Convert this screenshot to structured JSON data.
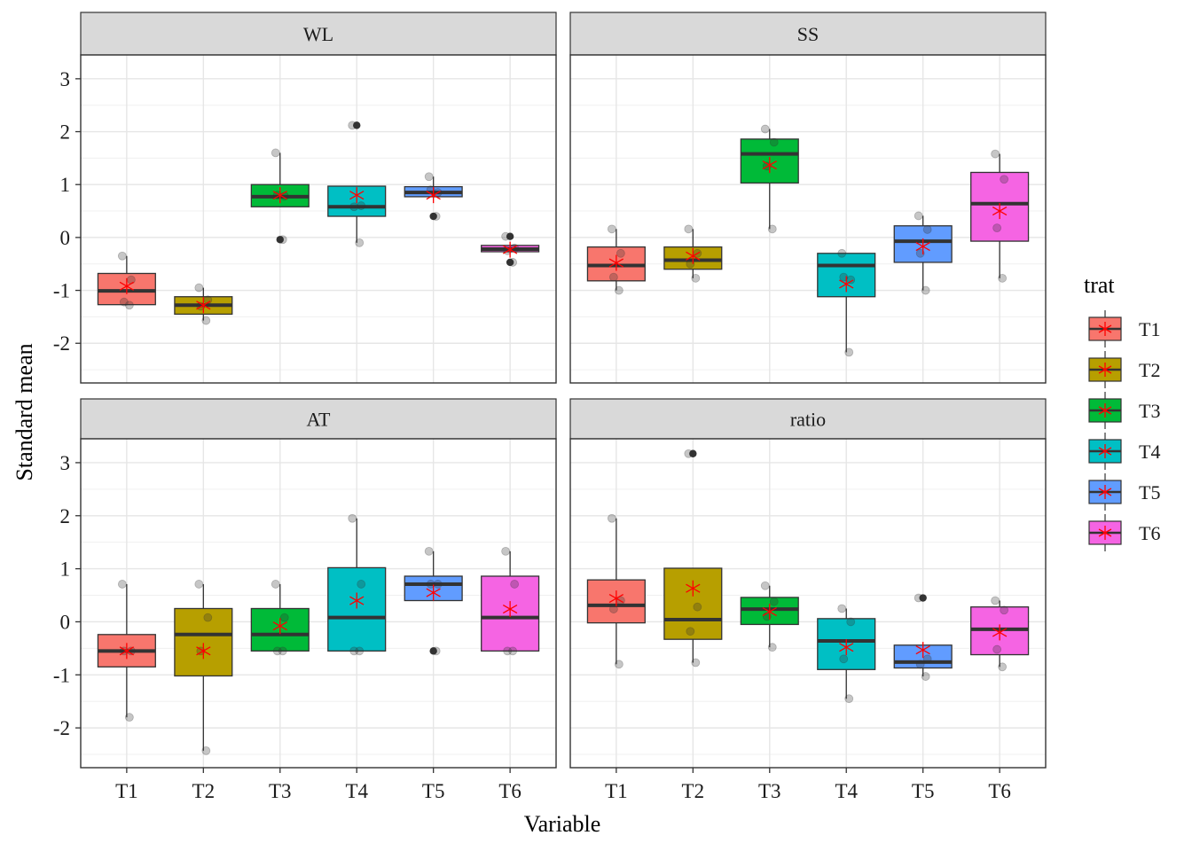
{
  "chart_data": {
    "type": "box",
    "xlabel": "Variable",
    "ylabel": "Standard mean",
    "categories": [
      "T1",
      "T2",
      "T3",
      "T4",
      "T5",
      "T6"
    ],
    "yticks": [
      -2,
      -1,
      0,
      1,
      2,
      3
    ],
    "ylim": [
      -2.75,
      3.45
    ],
    "legend": {
      "title": "trat",
      "position": "right",
      "entries": [
        "T1",
        "T2",
        "T3",
        "T4",
        "T5",
        "T6"
      ]
    },
    "colors": {
      "T1": "#F8766D",
      "T2": "#B79F00",
      "T3": "#00BA38",
      "T4": "#00BFC4",
      "T5": "#619CFF",
      "T6": "#F564E3"
    },
    "mean_marker_color": "#FF0000",
    "grid": true,
    "panels": [
      {
        "title": "WL",
        "boxes": [
          {
            "cat": "T1",
            "q1": -1.27,
            "median": -1.01,
            "q3": -0.68,
            "lo": -1.27,
            "hi": -0.35,
            "mean": -0.92,
            "outliers": [],
            "points": [
              -0.35,
              -0.8,
              -1.22,
              -1.28
            ]
          },
          {
            "cat": "T2",
            "q1": -1.45,
            "median": -1.28,
            "q3": -1.12,
            "lo": -1.57,
            "hi": -0.95,
            "mean": -1.28,
            "outliers": [],
            "points": [
              -0.95,
              -1.18,
              -1.3,
              -1.57
            ]
          },
          {
            "cat": "T3",
            "q1": 0.58,
            "median": 0.77,
            "q3": 1.0,
            "lo": 0.58,
            "hi": 1.6,
            "mean": 0.8,
            "outliers": [
              -0.04
            ],
            "points": [
              1.6,
              0.78,
              0.8,
              -0.04
            ]
          },
          {
            "cat": "T4",
            "q1": 0.4,
            "median": 0.58,
            "q3": 0.97,
            "lo": -0.1,
            "hi": 0.97,
            "mean": 0.8,
            "outliers": [
              2.12
            ],
            "points": [
              2.12,
              0.6,
              0.58,
              -0.1
            ]
          },
          {
            "cat": "T5",
            "q1": 0.77,
            "median": 0.85,
            "q3": 0.96,
            "lo": 0.77,
            "hi": 1.15,
            "mean": 0.8,
            "outliers": [
              0.4
            ],
            "points": [
              1.15,
              0.85,
              0.9,
              0.4
            ]
          },
          {
            "cat": "T6",
            "q1": -0.27,
            "median": -0.22,
            "q3": -0.15,
            "lo": -0.27,
            "hi": -0.15,
            "mean": -0.23,
            "outliers": [
              0.02,
              -0.47
            ],
            "points": [
              0.02,
              -0.2,
              -0.25,
              -0.47
            ]
          }
        ]
      },
      {
        "title": "SS",
        "boxes": [
          {
            "cat": "T1",
            "q1": -0.82,
            "median": -0.53,
            "q3": -0.18,
            "lo": -1.0,
            "hi": 0.16,
            "mean": -0.48,
            "outliers": [],
            "points": [
              0.16,
              -0.3,
              -0.75,
              -1.0
            ]
          },
          {
            "cat": "T2",
            "q1": -0.6,
            "median": -0.43,
            "q3": -0.18,
            "lo": -0.77,
            "hi": 0.16,
            "mean": -0.35,
            "outliers": [],
            "points": [
              0.16,
              -0.3,
              -0.5,
              -0.77
            ]
          },
          {
            "cat": "T3",
            "q1": 1.03,
            "median": 1.58,
            "q3": 1.86,
            "lo": 0.16,
            "hi": 2.05,
            "mean": 1.37,
            "outliers": [],
            "points": [
              2.05,
              1.8,
              1.35,
              0.16
            ]
          },
          {
            "cat": "T4",
            "q1": -1.12,
            "median": -0.53,
            "q3": -0.3,
            "lo": -2.17,
            "hi": -0.3,
            "mean": -0.88,
            "outliers": [],
            "points": [
              -0.3,
              -0.8,
              -0.75,
              -2.17
            ]
          },
          {
            "cat": "T5",
            "q1": -0.47,
            "median": -0.07,
            "q3": 0.22,
            "lo": -1.0,
            "hi": 0.41,
            "mean": -0.17,
            "outliers": [],
            "points": [
              0.41,
              0.15,
              -0.3,
              -1.0
            ]
          },
          {
            "cat": "T6",
            "q1": -0.07,
            "median": 0.64,
            "q3": 1.23,
            "lo": -0.77,
            "hi": 1.58,
            "mean": 0.5,
            "outliers": [],
            "points": [
              1.58,
              1.1,
              0.18,
              -0.77
            ]
          }
        ]
      },
      {
        "title": "AT",
        "boxes": [
          {
            "cat": "T1",
            "q1": -0.85,
            "median": -0.55,
            "q3": -0.24,
            "lo": -1.8,
            "hi": 0.71,
            "mean": -0.55,
            "outliers": [],
            "points": [
              0.71,
              -0.55,
              -0.55,
              -1.8
            ]
          },
          {
            "cat": "T2",
            "q1": -1.02,
            "median": -0.24,
            "q3": 0.25,
            "lo": -2.43,
            "hi": 0.71,
            "mean": -0.55,
            "outliers": [],
            "points": [
              0.71,
              0.08,
              -0.55,
              -2.43
            ]
          },
          {
            "cat": "T3",
            "q1": -0.55,
            "median": -0.24,
            "q3": 0.25,
            "lo": -0.55,
            "hi": 0.71,
            "mean": -0.08,
            "outliers": [],
            "points": [
              0.71,
              0.08,
              -0.55,
              -0.55
            ]
          },
          {
            "cat": "T4",
            "q1": -0.55,
            "median": 0.08,
            "q3": 1.02,
            "lo": -0.55,
            "hi": 1.95,
            "mean": 0.4,
            "outliers": [],
            "points": [
              1.95,
              0.71,
              -0.55,
              -0.55
            ]
          },
          {
            "cat": "T5",
            "q1": 0.4,
            "median": 0.71,
            "q3": 0.86,
            "lo": 0.4,
            "hi": 1.33,
            "mean": 0.55,
            "outliers": [
              -0.55
            ],
            "points": [
              1.33,
              0.71,
              0.71,
              -0.55
            ]
          },
          {
            "cat": "T6",
            "q1": -0.55,
            "median": 0.08,
            "q3": 0.86,
            "lo": -0.55,
            "hi": 1.33,
            "mean": 0.24,
            "outliers": [],
            "points": [
              1.33,
              0.71,
              -0.55,
              -0.55
            ]
          }
        ]
      },
      {
        "title": "ratio",
        "boxes": [
          {
            "cat": "T1",
            "q1": -0.02,
            "median": 0.31,
            "q3": 0.79,
            "lo": -0.8,
            "hi": 1.95,
            "mean": 0.44,
            "outliers": [],
            "points": [
              1.95,
              0.4,
              0.24,
              -0.8
            ]
          },
          {
            "cat": "T2",
            "q1": -0.33,
            "median": 0.04,
            "q3": 1.01,
            "lo": -0.77,
            "hi": 1.01,
            "mean": 0.63,
            "outliers": [
              3.17
            ],
            "points": [
              3.17,
              0.28,
              -0.18,
              -0.77
            ]
          },
          {
            "cat": "T3",
            "q1": -0.05,
            "median": 0.24,
            "q3": 0.46,
            "lo": -0.48,
            "hi": 0.68,
            "mean": 0.19,
            "outliers": [],
            "points": [
              0.68,
              0.38,
              0.1,
              -0.48
            ]
          },
          {
            "cat": "T4",
            "q1": -0.9,
            "median": -0.36,
            "q3": 0.06,
            "lo": -1.45,
            "hi": 0.25,
            "mean": -0.48,
            "outliers": [],
            "points": [
              0.25,
              0.0,
              -0.7,
              -1.45
            ]
          },
          {
            "cat": "T5",
            "q1": -0.87,
            "median": -0.76,
            "q3": -0.44,
            "lo": -1.03,
            "hi": -0.44,
            "mean": -0.53,
            "outliers": [
              0.45
            ],
            "points": [
              0.45,
              -0.7,
              -0.8,
              -1.03
            ]
          },
          {
            "cat": "T6",
            "q1": -0.62,
            "median": -0.14,
            "q3": 0.28,
            "lo": -0.85,
            "hi": 0.4,
            "mean": -0.2,
            "outliers": [],
            "points": [
              0.4,
              0.22,
              -0.52,
              -0.85
            ]
          }
        ]
      }
    ]
  }
}
